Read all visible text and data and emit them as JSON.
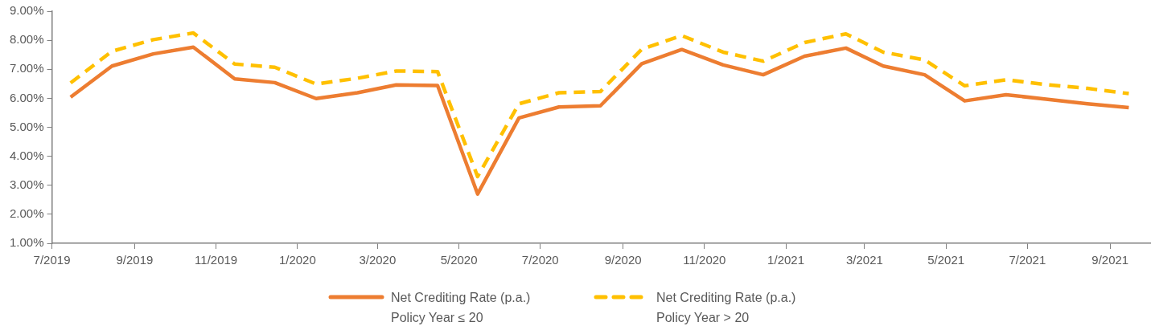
{
  "chart_data": {
    "type": "line",
    "x": [
      "2019-07-15",
      "2019-08-15",
      "2019-09-15",
      "2019-10-15",
      "2019-11-15",
      "2019-12-15",
      "2020-01-15",
      "2020-02-15",
      "2020-03-15",
      "2020-04-15",
      "2020-05-15",
      "2020-06-15",
      "2020-07-15",
      "2020-08-15",
      "2020-09-15",
      "2020-10-15",
      "2020-11-15",
      "2020-12-15",
      "2021-01-15",
      "2021-02-15",
      "2021-03-15",
      "2021-04-15",
      "2021-05-15",
      "2021-06-15",
      "2021-07-15",
      "2021-08-15",
      "2021-09-15"
    ],
    "series": [
      {
        "name": "Net Crediting Rate (p.a.) Policy Year ≤ 20",
        "color": "#ed7d31",
        "line_style": "solid",
        "values": [
          6.04,
          7.11,
          7.53,
          7.76,
          6.67,
          6.54,
          5.99,
          6.19,
          6.46,
          6.44,
          2.7,
          5.32,
          5.7,
          5.74,
          7.19,
          7.68,
          7.15,
          6.81,
          7.45,
          7.73,
          7.11,
          6.81,
          5.91,
          6.12,
          5.97,
          5.81,
          5.68
        ]
      },
      {
        "name": "Net Crediting Rate (p.a.) Policy Year > 20",
        "color": "#ffc000",
        "line_style": "dashed",
        "values": [
          6.53,
          7.62,
          8.02,
          8.25,
          7.18,
          7.07,
          6.49,
          6.69,
          6.94,
          6.92,
          3.3,
          5.81,
          6.19,
          6.23,
          7.69,
          8.16,
          7.59,
          7.28,
          7.92,
          8.22,
          7.59,
          7.32,
          6.43,
          6.64,
          6.47,
          6.34,
          6.16
        ]
      }
    ],
    "xlim": [
      "2019-07-01",
      "2021-10-01"
    ],
    "xticks": [
      {
        "value": "2019-07-01",
        "label": "7/2019"
      },
      {
        "value": "2019-09-01",
        "label": "9/2019"
      },
      {
        "value": "2019-11-01",
        "label": "11/2019"
      },
      {
        "value": "2020-01-01",
        "label": "1/2020"
      },
      {
        "value": "2020-03-01",
        "label": "3/2020"
      },
      {
        "value": "2020-05-01",
        "label": "5/2020"
      },
      {
        "value": "2020-07-01",
        "label": "7/2020"
      },
      {
        "value": "2020-09-01",
        "label": "9/2020"
      },
      {
        "value": "2020-11-01",
        "label": "11/2020"
      },
      {
        "value": "2021-01-01",
        "label": "1/2021"
      },
      {
        "value": "2021-03-01",
        "label": "3/2021"
      },
      {
        "value": "2021-05-01",
        "label": "5/2021"
      },
      {
        "value": "2021-07-01",
        "label": "7/2021"
      },
      {
        "value": "2021-09-01",
        "label": "9/2021"
      }
    ],
    "ylim": [
      1,
      9
    ],
    "yticks": [
      {
        "value": 1,
        "label": "1.00%"
      },
      {
        "value": 2,
        "label": "2.00%"
      },
      {
        "value": 3,
        "label": "3.00%"
      },
      {
        "value": 4,
        "label": "4.00%"
      },
      {
        "value": 5,
        "label": "5.00%"
      },
      {
        "value": 6,
        "label": "6.00%"
      },
      {
        "value": 7,
        "label": "7.00%"
      },
      {
        "value": 8,
        "label": "8.00%"
      },
      {
        "value": 9,
        "label": "9.00%"
      }
    ],
    "grid": false,
    "legend": "bottom",
    "marker": "none"
  }
}
